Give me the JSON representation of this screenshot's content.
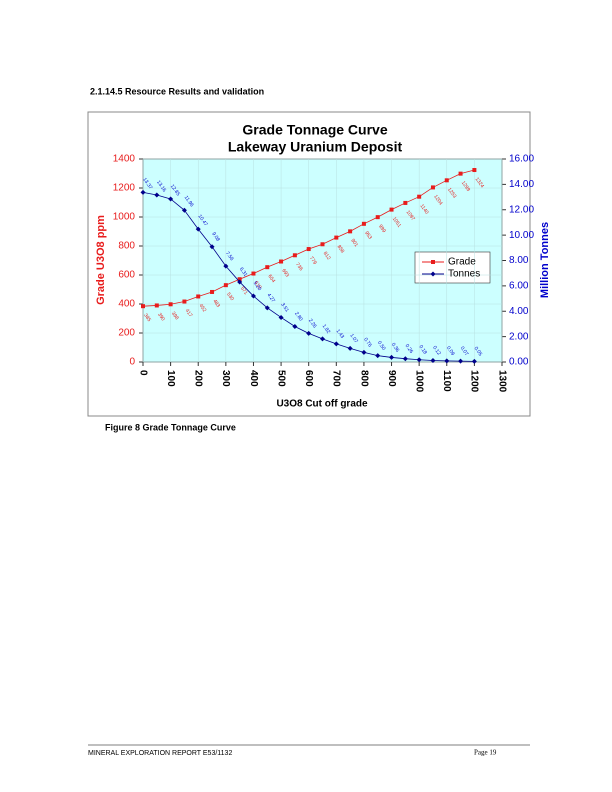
{
  "heading": "2.1.14.5   Resource Results and validation",
  "chart_data": {
    "type": "line",
    "title": "Grade Tonnage Curve",
    "subtitle": "Lakeway Uranium Deposit",
    "x_label": "U3O8 Cut off grade",
    "y_label": "Grade U3O8 ppm",
    "y2_label": "Million Tonnes",
    "x": [
      0,
      50,
      100,
      150,
      200,
      250,
      300,
      350,
      400,
      450,
      500,
      550,
      600,
      650,
      700,
      750,
      800,
      850,
      900,
      950,
      1000,
      1050,
      1100,
      1150,
      1200
    ],
    "series": [
      {
        "name": "Grade",
        "color": "#e81c1c",
        "values": [
          385,
          390,
          398,
          417,
          452,
          483,
          530,
          571,
          610,
          654,
          693,
          736,
          779,
          812,
          858,
          901,
          953,
          999,
          1051,
          1097,
          1140,
          1204,
          1253,
          1299,
          1324
        ]
      },
      {
        "name": "Tonnes",
        "color": "#00008b",
        "axis": "y2",
        "values": [
          13.37,
          13.16,
          12.85,
          11.96,
          10.47,
          9.08,
          7.56,
          6.31,
          5.2,
          4.27,
          3.51,
          2.8,
          2.26,
          1.82,
          1.43,
          1.07,
          0.76,
          0.5,
          0.36,
          0.26,
          0.18,
          0.12,
          0.09,
          0.07,
          0.05
        ],
        "value_labels": [
          "13.37",
          "13.16",
          "12.85",
          "11.96",
          "10.47",
          "9.08",
          "7.56",
          "6.31",
          "5.20",
          "4.27",
          "3.51",
          "2.80",
          "2.26",
          "1.82",
          "1.43",
          "1.07",
          "0.76",
          "0.50",
          "0.36",
          "0.26",
          "0.18",
          "0.12",
          "0.09",
          "0.07",
          "0.05"
        ]
      }
    ],
    "xlim": [
      0,
      1300
    ],
    "xticks": [
      0,
      100,
      200,
      300,
      400,
      500,
      600,
      700,
      800,
      900,
      1000,
      1100,
      1200,
      1300
    ],
    "ylim": [
      0,
      1400
    ],
    "yticks": [
      0,
      200,
      400,
      600,
      800,
      1000,
      1200,
      1400
    ],
    "y2lim": [
      0,
      16
    ],
    "y2ticks": [
      {
        "value": 0,
        "label": "0.00"
      },
      {
        "value": 2,
        "label": "2.00"
      },
      {
        "value": 4,
        "label": "4.00"
      },
      {
        "value": 6,
        "label": "6.00"
      },
      {
        "value": 8,
        "label": "8.00"
      },
      {
        "value": 10,
        "label": "10.00"
      },
      {
        "value": 12,
        "label": "12.00"
      },
      {
        "value": 14,
        "label": "14.00"
      },
      {
        "value": 16,
        "label": "16.00"
      }
    ],
    "grid": true,
    "legend": "right"
  },
  "caption": "Figure 8 Grade Tonnage Curve",
  "footer": {
    "left": "MINERAL EXPLORATION REPORT E53/1132",
    "right": "Page 19"
  }
}
